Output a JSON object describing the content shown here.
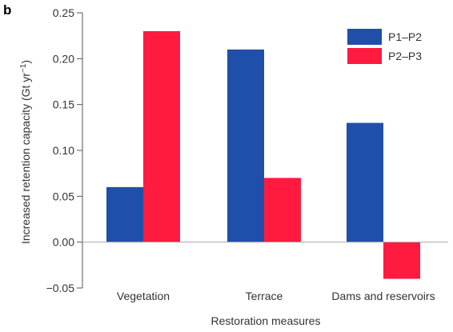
{
  "panel_label": "b",
  "chart_data": {
    "type": "bar",
    "categories": [
      "Vegetation",
      "Terrace",
      "Dams and reservoirs"
    ],
    "series": [
      {
        "name": "P1–P2",
        "color": "#1f4fa8",
        "values": [
          0.06,
          0.21,
          0.13
        ]
      },
      {
        "name": "P2–P3",
        "color": "#ff1a40",
        "values": [
          0.23,
          0.07,
          -0.04
        ]
      }
    ],
    "xlabel": "Restoration measures",
    "ylabel_main": "Increased retention capacity (Gt yr",
    "ylabel_sup": "−1",
    "ylabel_end": ")",
    "ylim": [
      -0.05,
      0.25
    ],
    "yticks": [
      -0.05,
      0.0,
      0.05,
      0.1,
      0.15,
      0.2,
      0.25
    ],
    "ytick_labels": [
      "−0.05",
      "0.00",
      "0.05",
      "0.10",
      "0.15",
      "0.20",
      "0.25"
    ],
    "grid": false,
    "legend_position": "top-right"
  }
}
